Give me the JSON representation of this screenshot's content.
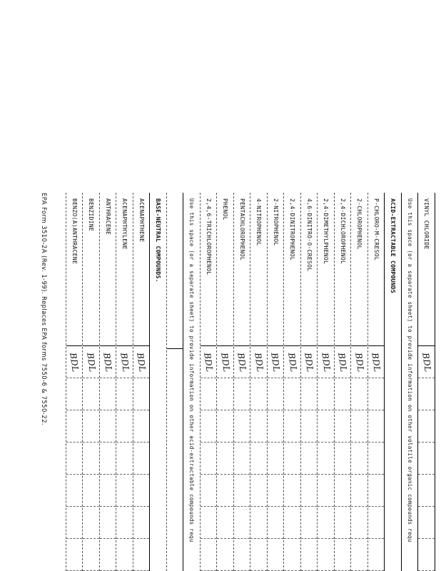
{
  "form": {
    "rows": [
      {
        "type": "item",
        "label": "VINYL CHLORIDE",
        "value": "BDL"
      },
      {
        "type": "note",
        "label": "Use this space (or a separate sheet) to provide information on other volatile organic compounds requ"
      },
      {
        "type": "head",
        "label": "ACID-EXTRACTABLE COMPOUNDS"
      },
      {
        "type": "item",
        "label": "P-CHLORO-M-CRESOL",
        "value": "BDL"
      },
      {
        "type": "item",
        "label": "2-CHLOROPHENOL",
        "value": "BDL"
      },
      {
        "type": "item",
        "label": "2,4-DICHLOROPHENOL",
        "value": "BDL"
      },
      {
        "type": "item",
        "label": "2,4-DIMETHYLPHENOL",
        "value": "BDL"
      },
      {
        "type": "item",
        "label": "4,6-DINITRO-O-CRESOL",
        "value": "BDL"
      },
      {
        "type": "item",
        "label": "2,4-DINITROPHENOL",
        "value": "BDL"
      },
      {
        "type": "item",
        "label": "2-NITROPHENOL",
        "value": "BDL"
      },
      {
        "type": "item",
        "label": "4-NITROPHENOL",
        "value": "BDL"
      },
      {
        "type": "item",
        "label": "PENTACHLOROPHENOL",
        "value": "BDL"
      },
      {
        "type": "item",
        "label": "PHENOL",
        "value": "BDL"
      },
      {
        "type": "item",
        "label": "2,4,6-TRICHLOROPHENOL",
        "value": "BDL"
      },
      {
        "type": "note",
        "label": "Use this space (or a separate sheet) to provide information on other acid-extractable compounds requ"
      },
      {
        "type": "blank",
        "label": ""
      },
      {
        "type": "head",
        "label": "BASE-NEUTRAL COMPOUNDS."
      },
      {
        "type": "item",
        "label": "ACENAPHTHENE",
        "value": "BDL"
      },
      {
        "type": "item",
        "label": "ACENAPHTHYLENE",
        "value": "BDL"
      },
      {
        "type": "item",
        "label": "ANTHRACENE",
        "value": "BDL"
      },
      {
        "type": "item",
        "label": "BENZIDINE",
        "value": "BDL"
      },
      {
        "type": "item",
        "label": "BENZO(A)ANTHRACENE",
        "value": "BDL"
      }
    ]
  },
  "footer": "EPA Form 3510-2A (Rev. 1-99). Replaces EPA forms 7550-6 & 7550-22."
}
